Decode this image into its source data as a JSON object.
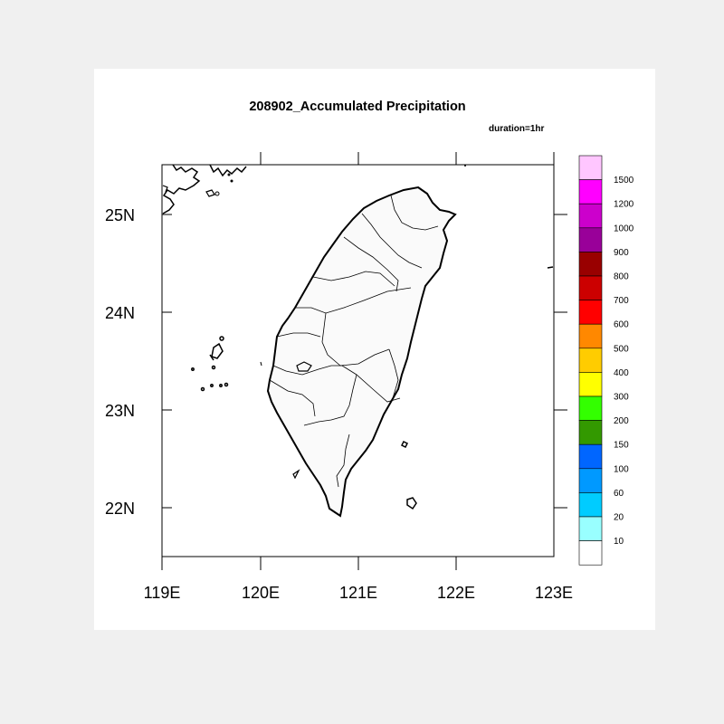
{
  "title": "208902_Accumulated Precipitation",
  "subtitle": "duration=1hr",
  "lat_labels": [
    "25N",
    "24N",
    "23N",
    "22N"
  ],
  "lon_labels": [
    "119E",
    "120E",
    "121E",
    "122E",
    "123E"
  ],
  "colorbar": {
    "labels": [
      "1500",
      "1200",
      "1000",
      "900",
      "800",
      "700",
      "600",
      "500",
      "400",
      "300",
      "200",
      "150",
      "100",
      "60",
      "20",
      "10"
    ],
    "colors": [
      "#ffc6ff",
      "#ff00ff",
      "#cc00cc",
      "#990099",
      "#990000",
      "#cc0000",
      "#ff0000",
      "#ff8800",
      "#ffcc00",
      "#ffff00",
      "#33ff00",
      "#339900",
      "#0066ff",
      "#0099ff",
      "#00ccff",
      "#99ffff",
      "#ffffff"
    ]
  }
}
